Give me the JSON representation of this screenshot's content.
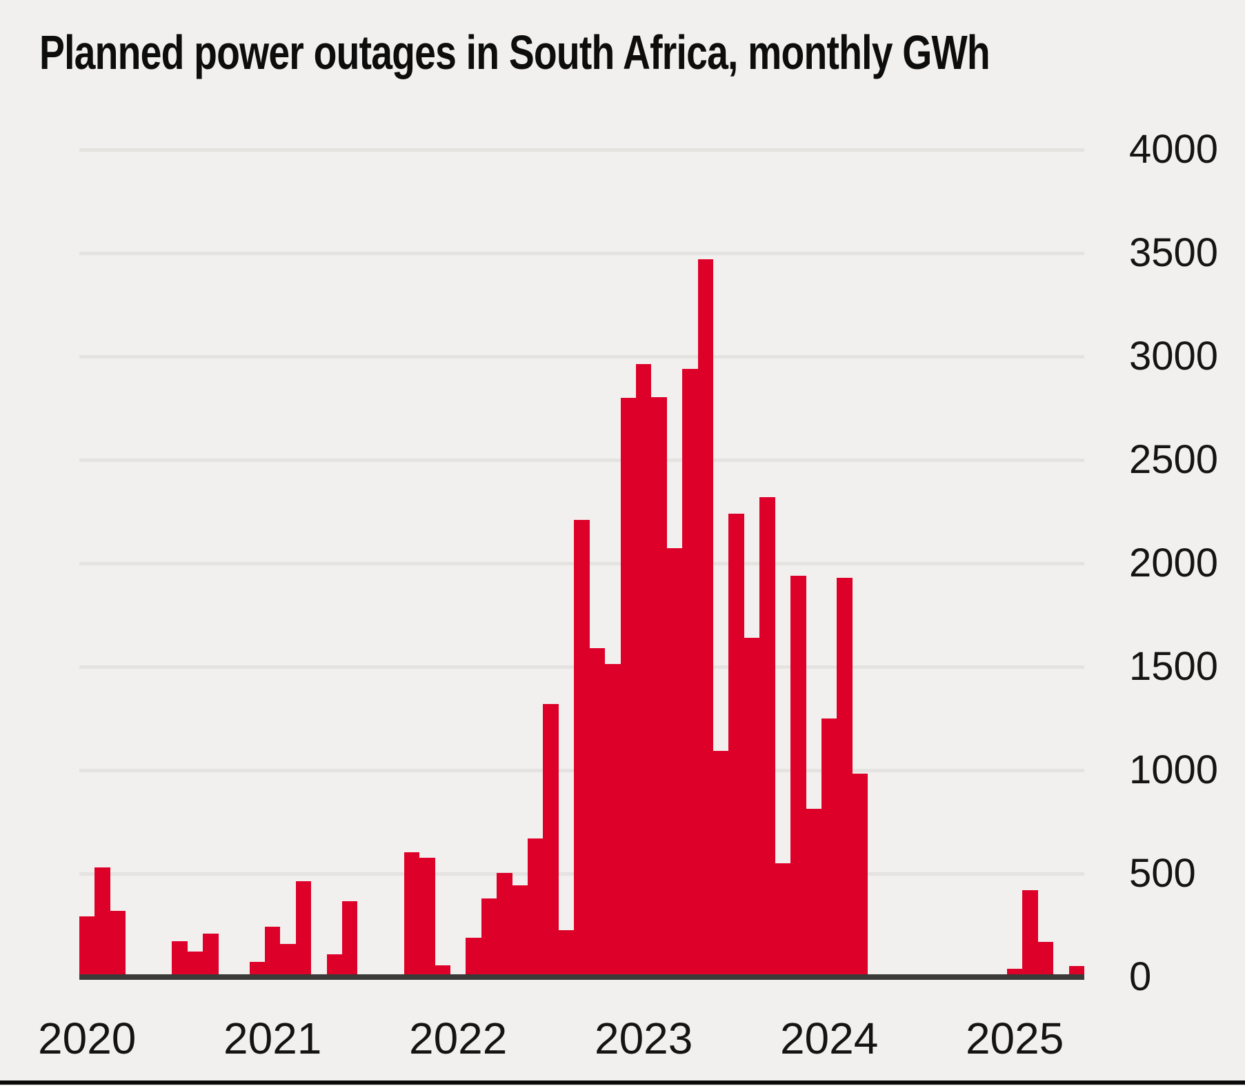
{
  "title": "Planned power outages in South Africa, monthly GWh",
  "colors": {
    "background": "#f2f0ee",
    "bar_red": "#dd0129",
    "gridline": "#e5e3e0",
    "axis_line": "#3b3a38",
    "bottom_rule": "#0b0b0b",
    "text": "#141414"
  },
  "chart_data": {
    "type": "bar",
    "title": "Planned power outages in South Africa, monthly GWh",
    "unit": "GWh",
    "frequency": "monthly",
    "x_start": "2020-01",
    "x_end": "2025-05",
    "xlabel": "",
    "ylabel": "",
    "ylim": [
      0,
      4000
    ],
    "yticks": [
      0,
      500,
      1000,
      1500,
      2000,
      2500,
      3000,
      3500,
      4000
    ],
    "y_tick_labels": [
      "0",
      "500",
      "1000",
      "1500",
      "2000",
      "2500",
      "3000",
      "3500",
      "4000"
    ],
    "x_tick_labels": [
      "2020",
      "2021",
      "2022",
      "2023",
      "2024",
      "2025"
    ],
    "grid": "horizontal",
    "legend_position": "none",
    "series": [
      {
        "name": "Planned outages (GWh)",
        "values": [
          285,
          520,
          310,
          0,
          0,
          0,
          165,
          115,
          200,
          0,
          0,
          65,
          235,
          150,
          455,
          0,
          100,
          357,
          0,
          0,
          0,
          595,
          567,
          47,
          0,
          180,
          370,
          495,
          435,
          660,
          1310,
          218,
          2200,
          1580,
          1505,
          2790,
          2955,
          2795,
          2065,
          2930,
          3460,
          1085,
          2230,
          1630,
          2310,
          540,
          1930,
          805,
          1240,
          1920,
          975,
          0,
          0,
          0,
          0,
          0,
          0,
          0,
          0,
          0,
          30,
          410,
          160,
          0,
          45
        ]
      }
    ]
  }
}
